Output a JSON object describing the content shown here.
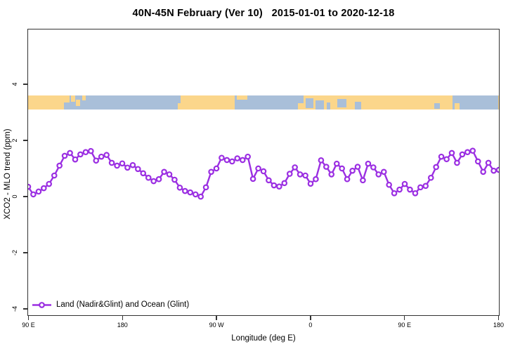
{
  "title": "40N-45N February (Ver 10)   2015-01-01 to 2020-12-18",
  "legend": {
    "label": "Land (Nadir&Glint) and Ocean (Glint)"
  },
  "chart_data": {
    "type": "line",
    "title": "40N-45N February (Ver 10)   2015-01-01 to 2020-12-18",
    "xlabel": "Longitude (deg E)",
    "ylabel": "XCO2 - MLO trend (ppm)",
    "xlim": [
      90,
      540
    ],
    "ylim": [
      -4.3,
      5.95
    ],
    "grid": false,
    "legend_position": "bottom-left-inside",
    "x_ticks": [
      {
        "lon": 90,
        "label": "90 E"
      },
      {
        "lon": 180,
        "label": "180"
      },
      {
        "lon": 270,
        "label": "90 W"
      },
      {
        "lon": 360,
        "label": "0"
      },
      {
        "lon": 450,
        "label": "90 E"
      },
      {
        "lon": 540,
        "label": "180"
      }
    ],
    "y_ticks": [
      {
        "value": -4,
        "label": "-4"
      },
      {
        "value": -2,
        "label": "-2"
      },
      {
        "value": 0,
        "label": "0"
      },
      {
        "value": 2,
        "label": "2"
      },
      {
        "value": 4,
        "label": "4"
      }
    ],
    "series": [
      {
        "name": "Land (Nadir&Glint) and Ocean (Glint)",
        "color": "#9B2FE2",
        "marker": "open-circle",
        "x_start": 90,
        "x_step": 5,
        "values": [
          0.35,
          0.08,
          0.18,
          0.3,
          0.45,
          0.75,
          1.1,
          1.45,
          1.55,
          1.32,
          1.5,
          1.58,
          1.62,
          1.28,
          1.42,
          1.48,
          1.2,
          1.1,
          1.18,
          1.03,
          1.12,
          0.98,
          0.83,
          0.67,
          0.55,
          0.62,
          0.88,
          0.79,
          0.6,
          0.32,
          0.2,
          0.15,
          0.08,
          0.0,
          0.33,
          0.88,
          1.0,
          1.38,
          1.3,
          1.25,
          1.36,
          1.3,
          1.42,
          0.63,
          1.0,
          0.9,
          0.58,
          0.4,
          0.36,
          0.48,
          0.81,
          1.04,
          0.79,
          0.75,
          0.46,
          0.62,
          1.29,
          1.06,
          0.79,
          1.17,
          1.0,
          0.62,
          0.92,
          1.06,
          0.58,
          1.17,
          1.04,
          0.79,
          0.88,
          0.42,
          0.12,
          0.25,
          0.45,
          0.25,
          0.12,
          0.33,
          0.38,
          0.67,
          1.05,
          1.42,
          1.33,
          1.55,
          1.2,
          1.5,
          1.58,
          1.63,
          1.25,
          0.88,
          1.2,
          0.92,
          0.95
        ]
      }
    ],
    "map_strip": {
      "description": "land-ocean world map band for latitude 40N-45N",
      "value_range": [
        3.08,
        3.58
      ],
      "land_color": "#FBD68B",
      "ocean_color": "#A9BFD9",
      "ocean_segments": [
        {
          "from": 130,
          "to": 236
        },
        {
          "from": 288,
          "to": 348.5
        },
        {
          "from": 496,
          "to": 540
        }
      ],
      "patches": [
        {
          "kind": "ocean",
          "from": 124,
          "to": 130,
          "top": 0.5,
          "bottom": 1.0
        },
        {
          "kind": "land",
          "from": 131,
          "to": 135,
          "top": 0.0,
          "bottom": 0.45
        },
        {
          "kind": "land",
          "from": 136,
          "to": 140,
          "top": 0.3,
          "bottom": 0.75
        },
        {
          "kind": "land",
          "from": 141.5,
          "to": 145,
          "top": 0.0,
          "bottom": 0.35
        },
        {
          "kind": "land",
          "from": 233,
          "to": 236,
          "top": 0.55,
          "bottom": 1.0
        },
        {
          "kind": "land",
          "from": 290,
          "to": 300,
          "top": 0.0,
          "bottom": 0.3
        },
        {
          "kind": "ocean",
          "from": 347,
          "to": 354,
          "top": 0.0,
          "bottom": 0.55
        },
        {
          "kind": "ocean",
          "from": 356,
          "to": 363,
          "top": 0.2,
          "bottom": 0.9
        },
        {
          "kind": "ocean",
          "from": 365,
          "to": 373,
          "top": 0.35,
          "bottom": 1.0
        },
        {
          "kind": "ocean",
          "from": 376,
          "to": 379,
          "top": 0.5,
          "bottom": 1.0
        },
        {
          "kind": "ocean",
          "from": 386,
          "to": 395,
          "top": 0.25,
          "bottom": 0.85
        },
        {
          "kind": "ocean",
          "from": 403,
          "to": 409,
          "top": 0.45,
          "bottom": 1.0
        },
        {
          "kind": "ocean",
          "from": 479,
          "to": 484,
          "top": 0.55,
          "bottom": 0.95
        },
        {
          "kind": "land",
          "from": 498,
          "to": 503,
          "top": 0.55,
          "bottom": 1.0
        }
      ]
    }
  }
}
